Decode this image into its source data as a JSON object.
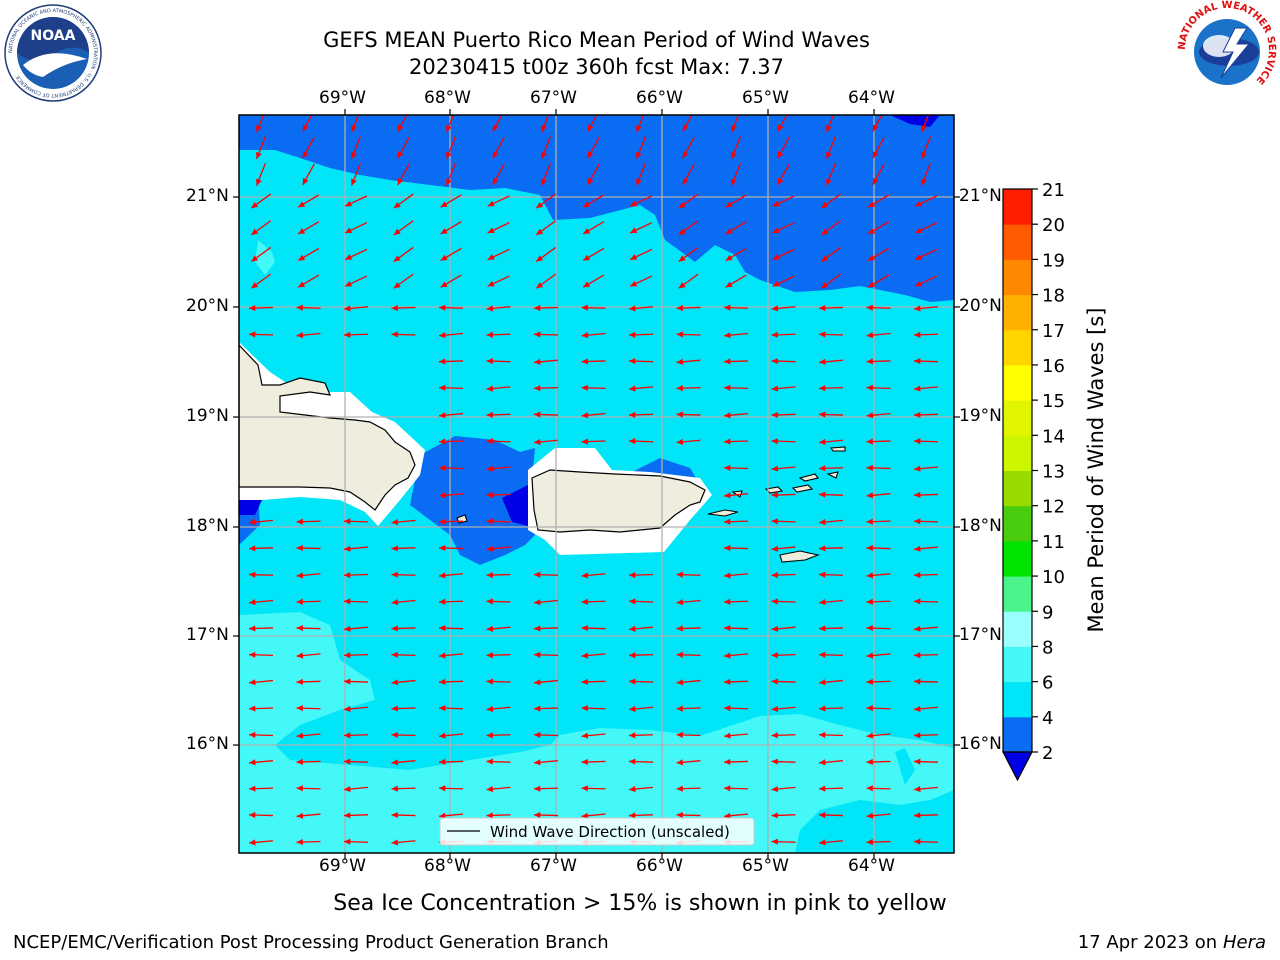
{
  "header": {
    "title_line1": "GEFS MEAN Puerto Rico Mean Period of Wind Waves",
    "title_line2": "20230415 t00z 360h fcst   Max: 7.37"
  },
  "logos": {
    "left": "NOAA",
    "left_ring_text": "NATIONAL OCEANIC AND ATMOSPHERIC ADMINISTRATION · U.S. DEPARTMENT OF COMMERCE",
    "right_ring_text": "NATIONAL WEATHER SERVICE"
  },
  "map": {
    "lon_labels": [
      "69°W",
      "68°W",
      "67°W",
      "66°W",
      "65°W",
      "64°W"
    ],
    "lat_labels": [
      "21°N",
      "20°N",
      "19°N",
      "18°N",
      "17°N",
      "16°N"
    ],
    "legend_label": "Wind Wave Direction (unscaled)",
    "arrow_color": "#ff0000",
    "land_color": "#efedde"
  },
  "colorbar": {
    "label": "Mean Period of Wind Waves [s]",
    "ticks": [
      "2",
      "4",
      "6",
      "8",
      "9",
      "10",
      "11",
      "12",
      "13",
      "14",
      "15",
      "16",
      "17",
      "18",
      "19",
      "20",
      "21"
    ],
    "colors": [
      "#0a6cf2",
      "#00e5f7",
      "#44f8f8",
      "#99ffff",
      "#4cf58b",
      "#00e400",
      "#4acc0f",
      "#99db00",
      "#ccf500",
      "#e2f500",
      "#ffff00",
      "#ffd500",
      "#ffb000",
      "#ff8800",
      "#ff5a00",
      "#ff1e00"
    ],
    "under_color": "#0000e6"
  },
  "caption": "Sea Ice Concentration > 15% is shown in pink to yellow",
  "footer": {
    "left": "NCEP/EMC/Verification Post Processing Product Generation Branch",
    "right_prefix": "17 Apr 2023 on ",
    "right_host": "Hera"
  }
}
